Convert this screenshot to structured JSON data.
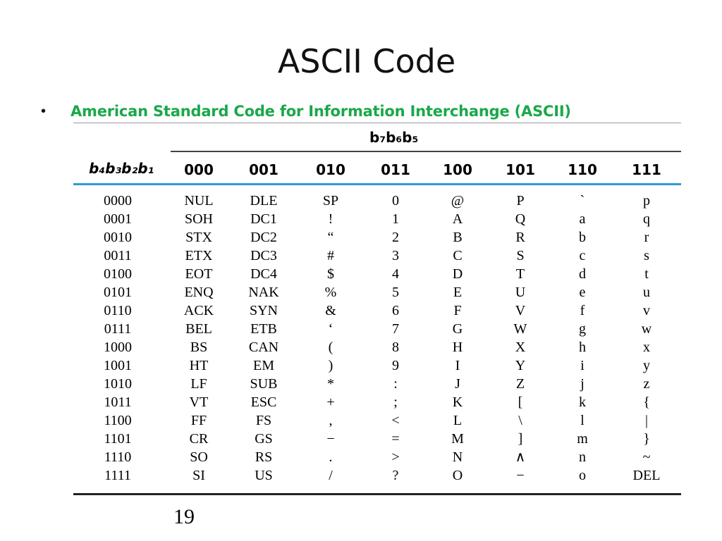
{
  "slide": {
    "title": "ASCII Code",
    "bullet_text": "American Standard Code for Information Interchange (ASCII)",
    "page_number": "19"
  },
  "table": {
    "high_bits_label": "b₇b₆b₅",
    "low_bits_label": "b₄b₃b₂b₁",
    "columns": [
      "000",
      "001",
      "010",
      "011",
      "100",
      "101",
      "110",
      "111"
    ],
    "rows": [
      {
        "code": "0000",
        "cells": [
          "NUL",
          "DLE",
          "SP",
          "0",
          "@",
          "P",
          "`",
          "p"
        ]
      },
      {
        "code": "0001",
        "cells": [
          "SOH",
          "DC1",
          "!",
          "1",
          "A",
          "Q",
          "a",
          "q"
        ]
      },
      {
        "code": "0010",
        "cells": [
          "STX",
          "DC2",
          "“",
          "2",
          "B",
          "R",
          "b",
          "r"
        ]
      },
      {
        "code": "0011",
        "cells": [
          "ETX",
          "DC3",
          "#",
          "3",
          "C",
          "S",
          "c",
          "s"
        ]
      },
      {
        "code": "0100",
        "cells": [
          "EOT",
          "DC4",
          "$",
          "4",
          "D",
          "T",
          "d",
          "t"
        ]
      },
      {
        "code": "0101",
        "cells": [
          "ENQ",
          "NAK",
          "%",
          "5",
          "E",
          "U",
          "e",
          "u"
        ]
      },
      {
        "code": "0110",
        "cells": [
          "ACK",
          "SYN",
          "&",
          "6",
          "F",
          "V",
          "f",
          "v"
        ]
      },
      {
        "code": "0111",
        "cells": [
          "BEL",
          "ETB",
          "‘",
          "7",
          "G",
          "W",
          "g",
          "w"
        ]
      },
      {
        "code": "1000",
        "cells": [
          "BS",
          "CAN",
          "(",
          "8",
          "H",
          "X",
          "h",
          "x"
        ]
      },
      {
        "code": "1001",
        "cells": [
          "HT",
          "EM",
          ")",
          "9",
          "I",
          "Y",
          "i",
          "y"
        ]
      },
      {
        "code": "1010",
        "cells": [
          "LF",
          "SUB",
          "*",
          ":",
          "J",
          "Z",
          "j",
          "z"
        ]
      },
      {
        "code": "1011",
        "cells": [
          "VT",
          "ESC",
          "+",
          ";",
          "K",
          "[",
          "k",
          "{"
        ]
      },
      {
        "code": "1100",
        "cells": [
          "FF",
          "FS",
          ",",
          "<",
          "L",
          "\\",
          "l",
          "|"
        ]
      },
      {
        "code": "1101",
        "cells": [
          "CR",
          "GS",
          "−",
          "=",
          "M",
          "]",
          "m",
          "}"
        ]
      },
      {
        "code": "1110",
        "cells": [
          "SO",
          "RS",
          ".",
          ">",
          "N",
          "∧",
          "n",
          "~"
        ]
      },
      {
        "code": "1111",
        "cells": [
          "SI",
          "US",
          "/",
          "?",
          "O",
          "−",
          "o",
          "DEL"
        ]
      }
    ]
  },
  "colors": {
    "bullet_text": "#1aa84a",
    "header_rule": "#2e9bd6"
  }
}
